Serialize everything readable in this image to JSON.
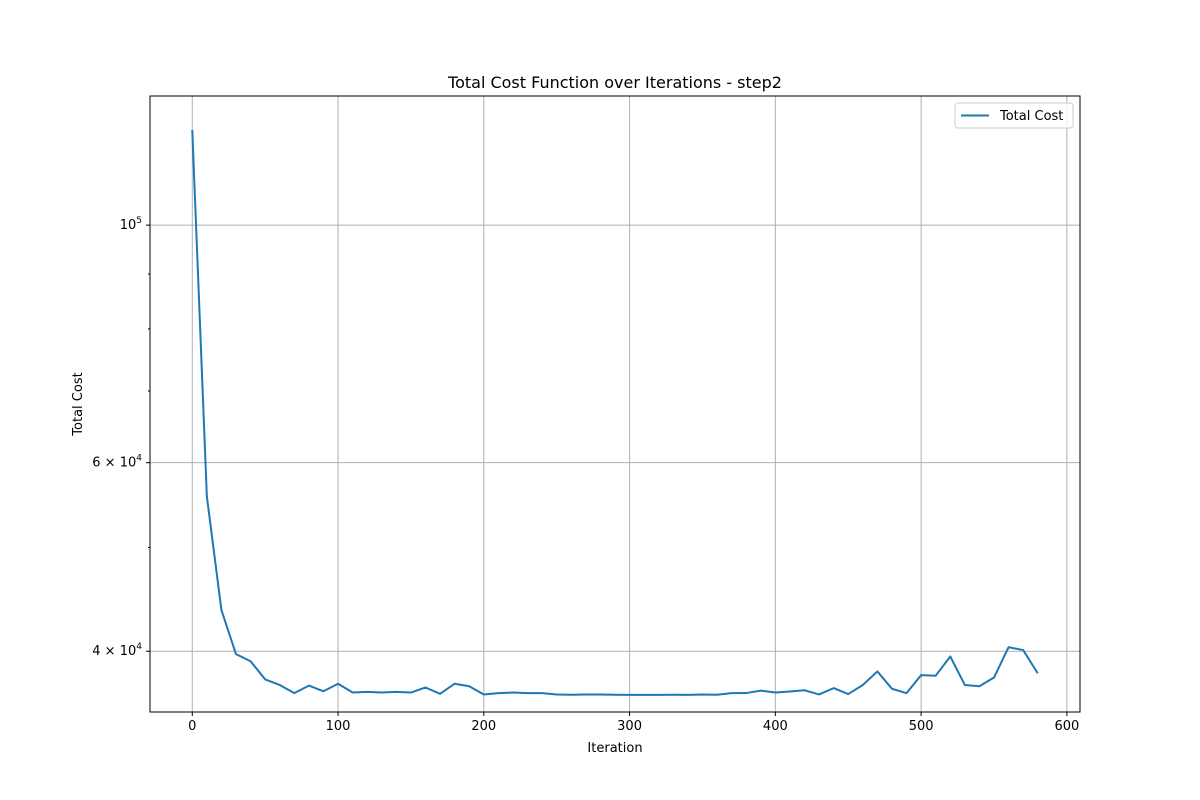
{
  "chart_data": {
    "type": "line",
    "title": "Total Cost Function over Iterations - step2",
    "xlabel": "Iteration",
    "ylabel": "Total Cost",
    "xscale": "linear",
    "yscale": "log",
    "xlim": [
      -29,
      609
    ],
    "ylim": [
      35100,
      132000
    ],
    "xticks": [
      0,
      100,
      200,
      300,
      400,
      500,
      600
    ],
    "yticks": [
      {
        "value": 100000,
        "label_base": "10",
        "label_exp": "5",
        "label_mantissa": ""
      },
      {
        "value": 60000,
        "label_base": "10",
        "label_exp": "4",
        "label_mantissa": "6 × "
      },
      {
        "value": 40000,
        "label_base": "10",
        "label_exp": "4",
        "label_mantissa": "4 × "
      }
    ],
    "yminor_ticks": [
      50000,
      70000,
      80000,
      90000
    ],
    "grid": true,
    "legend": {
      "position": "top-right",
      "entries": [
        "Total Cost"
      ]
    },
    "series": [
      {
        "name": "Total Cost",
        "color": "#1f77b4",
        "x": [
          0,
          10,
          20,
          30,
          40,
          50,
          60,
          70,
          80,
          90,
          100,
          110,
          120,
          130,
          140,
          150,
          160,
          170,
          180,
          190,
          200,
          210,
          220,
          230,
          240,
          250,
          260,
          270,
          280,
          290,
          300,
          310,
          320,
          330,
          340,
          350,
          360,
          370,
          380,
          390,
          400,
          410,
          420,
          430,
          440,
          450,
          460,
          470,
          480,
          490,
          500,
          510,
          520,
          530,
          540,
          550,
          560,
          570,
          580
        ],
        "y": [
          122700,
          55800,
          43700,
          39750,
          39150,
          37650,
          37200,
          36550,
          37150,
          36700,
          37300,
          36600,
          36650,
          36600,
          36650,
          36600,
          37000,
          36500,
          37300,
          37100,
          36450,
          36550,
          36600,
          36550,
          36550,
          36450,
          36430,
          36450,
          36450,
          36430,
          36420,
          36420,
          36420,
          36430,
          36420,
          36450,
          36430,
          36550,
          36560,
          36750,
          36600,
          36680,
          36780,
          36450,
          36950,
          36480,
          37200,
          38300,
          36900,
          36550,
          38000,
          37950,
          39550,
          37200,
          37100,
          37800,
          40350,
          40100,
          38150
        ]
      }
    ]
  }
}
